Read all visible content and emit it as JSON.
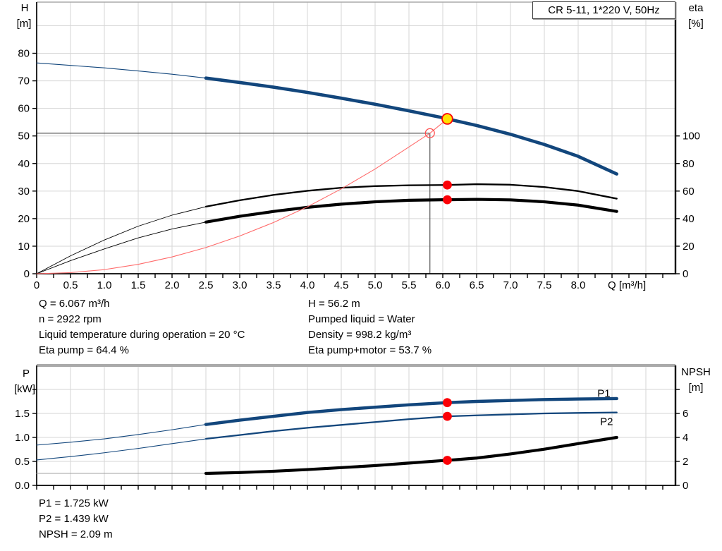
{
  "colors": {
    "curve_blue": "#12467c",
    "curve_black": "#000000",
    "system_red": "#ff6b6b",
    "marker_red": "#fb0006",
    "marker_yellow_fill": "#ffe100",
    "marker_ring_red": "#ff4d4d",
    "grid": "#d6d6d6",
    "axis": "#000000",
    "top_border_gray": "#aaaaaa",
    "crosshair": "#454545",
    "label_blue": "#2d6399",
    "npsh_thin_gray": "#a0a0a0"
  },
  "details_top": {
    "left": [
      "Q = 6.067 m³/h",
      "n = 2922 rpm",
      "Liquid temperature during operation = 20 °C",
      "Eta pump = 64.4 %"
    ],
    "right": [
      "H = 56.2 m",
      "Pumped liquid = Water",
      "Density = 998.2 kg/m³",
      "Eta pump+motor = 53.7 %"
    ]
  },
  "details_bottom": [
    "P1 = 1.725 kW",
    "P2 = 1.439 kW",
    "NPSH = 2.09 m"
  ],
  "chart_data": [
    {
      "type": "line",
      "title": "CR 5-11, 1*220 V, 50Hz",
      "x_axis": {
        "label": "Q [m³/h]",
        "min": 0,
        "max": 9.45,
        "tick_label_step": 0.5,
        "tick_labels": [
          "0",
          "0.5",
          "1.0",
          "1.5",
          "2.0",
          "2.5",
          "3.0",
          "3.5",
          "4.0",
          "4.5",
          "5.0",
          "5.5",
          "6.0",
          "6.5",
          "7.0",
          "7.5",
          "8.0"
        ],
        "minor_tick_step": 0.25,
        "grid_step": 0.5
      },
      "y_left": {
        "label": "H",
        "unit": "[m]",
        "min": 0,
        "max": 98,
        "tick_values": [
          0,
          10,
          20,
          30,
          40,
          50,
          60,
          70,
          80
        ],
        "tick_labels": [
          "0",
          "10",
          "20",
          "30",
          "40",
          "50",
          "60",
          "70",
          "80"
        ],
        "extra_tick_values": [],
        "grid_values": [
          10,
          20,
          30,
          40,
          50,
          60,
          70,
          80,
          90
        ]
      },
      "y_right": {
        "label": "eta",
        "unit": "[%]",
        "min": 0,
        "max": 197,
        "tick_values": [
          0,
          20,
          40,
          60,
          80,
          100
        ],
        "tick_labels": [
          "0",
          "20",
          "40",
          "60",
          "80",
          "100"
        ],
        "extra_tick_values": []
      },
      "crosshair": {
        "q": 5.81,
        "v": 51.0,
        "axis": "left"
      },
      "series": [
        {
          "name": "pump-curve",
          "axis": "left",
          "color": "#12467c",
          "thin_width": 1.1,
          "thick_width": 4.6,
          "split_x": 2.5,
          "x": [
            0,
            0.5,
            1,
            1.5,
            2,
            2.5,
            3,
            3.5,
            4,
            4.5,
            5,
            5.5,
            6,
            6.067,
            6.5,
            7,
            7.5,
            8,
            8.57
          ],
          "y": [
            76.5,
            75.6,
            74.7,
            73.6,
            72.4,
            71.0,
            69.4,
            67.7,
            65.8,
            63.7,
            61.5,
            59.1,
            56.6,
            56.2,
            53.8,
            50.6,
            46.9,
            42.6,
            36.2
          ]
        },
        {
          "name": "eta-pump-curve",
          "axis": "right",
          "color": "#000000",
          "thin_width": 0.9,
          "thick_width": 2.3,
          "split_x": 2.5,
          "x": [
            0,
            0.5,
            1,
            1.5,
            2,
            2.5,
            3,
            3.5,
            4,
            4.5,
            5,
            5.5,
            6,
            6.067,
            6.5,
            7,
            7.5,
            8,
            8.57
          ],
          "y": [
            0,
            13,
            24.5,
            34.5,
            42.5,
            48.7,
            53.3,
            57.2,
            60.2,
            62.4,
            63.6,
            64.2,
            64.4,
            64.4,
            65.0,
            64.6,
            62.9,
            60.0,
            54.5
          ]
        },
        {
          "name": "eta-pump-motor-curve",
          "axis": "right",
          "color": "#000000",
          "thin_width": 0.9,
          "thick_width": 4.2,
          "split_x": 2.5,
          "x": [
            0,
            0.5,
            1,
            1.5,
            2,
            2.5,
            3,
            3.5,
            4,
            4.5,
            5,
            5.5,
            6,
            6.067,
            6.5,
            7,
            7.5,
            8,
            8.57
          ],
          "y": [
            0,
            9.5,
            18,
            26,
            32.5,
            37.5,
            41.7,
            45.2,
            48.2,
            50.5,
            52.2,
            53.3,
            53.7,
            53.7,
            54.0,
            53.6,
            52.2,
            49.8,
            45.2
          ]
        },
        {
          "name": "system-curve",
          "axis": "left",
          "color": "#ff6b6b",
          "thin_width": 1.1,
          "thick_width": 1.1,
          "split_x": 99,
          "x": [
            0,
            0.5,
            1,
            1.5,
            2,
            2.5,
            3,
            3.5,
            4,
            4.5,
            5,
            5.5,
            5.81,
            6.067
          ],
          "y": [
            0,
            0.4,
            1.5,
            3.4,
            6.1,
            9.5,
            13.7,
            18.6,
            24.3,
            30.8,
            38.0,
            46.0,
            51.0,
            56.2
          ]
        }
      ],
      "markers": [
        {
          "name": "duty-point-requested",
          "style": "open",
          "axis": "left",
          "x": 5.81,
          "y": 51.0
        },
        {
          "name": "operating-point",
          "style": "yellow",
          "axis": "left",
          "x": 6.067,
          "y": 56.2
        },
        {
          "name": "eta-pump-point",
          "style": "dot",
          "axis": "right",
          "x": 6.067,
          "y": 64.4
        },
        {
          "name": "eta-pump-motor-point",
          "style": "dot",
          "axis": "right",
          "x": 6.067,
          "y": 53.7
        }
      ],
      "series_labels": []
    },
    {
      "type": "line",
      "title": "",
      "x_axis": {
        "label": "",
        "min": 0,
        "max": 9.45,
        "tick_label_step": 0.5,
        "tick_labels": [],
        "minor_tick_step": 0.25,
        "grid_step": 0.5
      },
      "y_left": {
        "label": "P",
        "unit": "[kW]",
        "min": 0,
        "max": 2.5,
        "tick_values": [
          0,
          0.5,
          1.0,
          1.5
        ],
        "tick_labels": [
          "0.0",
          "0.5",
          "1.0",
          "1.5"
        ],
        "extra_tick_values": [
          2.0
        ],
        "grid_values": [
          0.5,
          1.0,
          1.5,
          2.0
        ]
      },
      "y_right": {
        "label": "NPSH",
        "unit": "[m]",
        "min": 0,
        "max": 10,
        "tick_values": [
          0,
          2,
          4,
          6
        ],
        "tick_labels": [
          "0",
          "2",
          "4",
          "6"
        ],
        "extra_tick_values": [
          8
        ]
      },
      "series": [
        {
          "name": "p1-curve",
          "axis": "left",
          "color": "#12467c",
          "thin_width": 1.1,
          "thick_width": 4.4,
          "split_x": 2.5,
          "x": [
            0,
            0.5,
            1,
            1.5,
            2,
            2.5,
            3,
            3.5,
            4,
            4.5,
            5,
            5.5,
            6,
            6.067,
            6.5,
            7,
            7.5,
            8,
            8.57
          ],
          "y": [
            0.84,
            0.9,
            0.97,
            1.06,
            1.16,
            1.27,
            1.36,
            1.44,
            1.52,
            1.58,
            1.63,
            1.68,
            1.72,
            1.725,
            1.75,
            1.77,
            1.79,
            1.8,
            1.81
          ]
        },
        {
          "name": "p2-curve",
          "axis": "left",
          "color": "#12467c",
          "thin_width": 1.1,
          "thick_width": 2.3,
          "split_x": 2.5,
          "x": [
            0,
            0.5,
            1,
            1.5,
            2,
            2.5,
            3,
            3.5,
            4,
            4.5,
            5,
            5.5,
            6,
            6.067,
            6.5,
            7,
            7.5,
            8,
            8.57
          ],
          "y": [
            0.53,
            0.6,
            0.68,
            0.77,
            0.87,
            0.97,
            1.05,
            1.13,
            1.2,
            1.26,
            1.32,
            1.38,
            1.43,
            1.439,
            1.46,
            1.48,
            1.5,
            1.51,
            1.52
          ]
        },
        {
          "name": "npsh-curve",
          "axis": "right",
          "color": "#000000",
          "thin_color": "#a0a0a0",
          "thin_width": 1.1,
          "thick_width": 4.2,
          "split_x": 2.5,
          "x": [
            0,
            0.5,
            1,
            1.5,
            2,
            2.5,
            3,
            3.5,
            4,
            4.5,
            5,
            5.5,
            6,
            6.067,
            6.5,
            7,
            7.5,
            8,
            8.57
          ],
          "y": [
            1.0,
            1.0,
            1.0,
            1.0,
            1.0,
            1.0,
            1.07,
            1.18,
            1.32,
            1.48,
            1.65,
            1.86,
            2.07,
            2.09,
            2.28,
            2.62,
            3.02,
            3.48,
            4.0
          ]
        }
      ],
      "markers": [
        {
          "name": "p1-point",
          "style": "dot",
          "axis": "left",
          "x": 6.067,
          "y": 1.725
        },
        {
          "name": "p2-point",
          "style": "dot",
          "axis": "left",
          "x": 6.067,
          "y": 1.439
        },
        {
          "name": "npsh-point",
          "style": "dot",
          "axis": "right",
          "x": 6.067,
          "y": 2.09
        }
      ],
      "series_labels": [
        {
          "text": "P1",
          "axis": "left",
          "q": 8.38,
          "v": 1.92,
          "color": "#2d6399"
        },
        {
          "text": "P2",
          "axis": "left",
          "q": 8.42,
          "v": 1.33,
          "color": "#2d6399"
        }
      ]
    }
  ]
}
